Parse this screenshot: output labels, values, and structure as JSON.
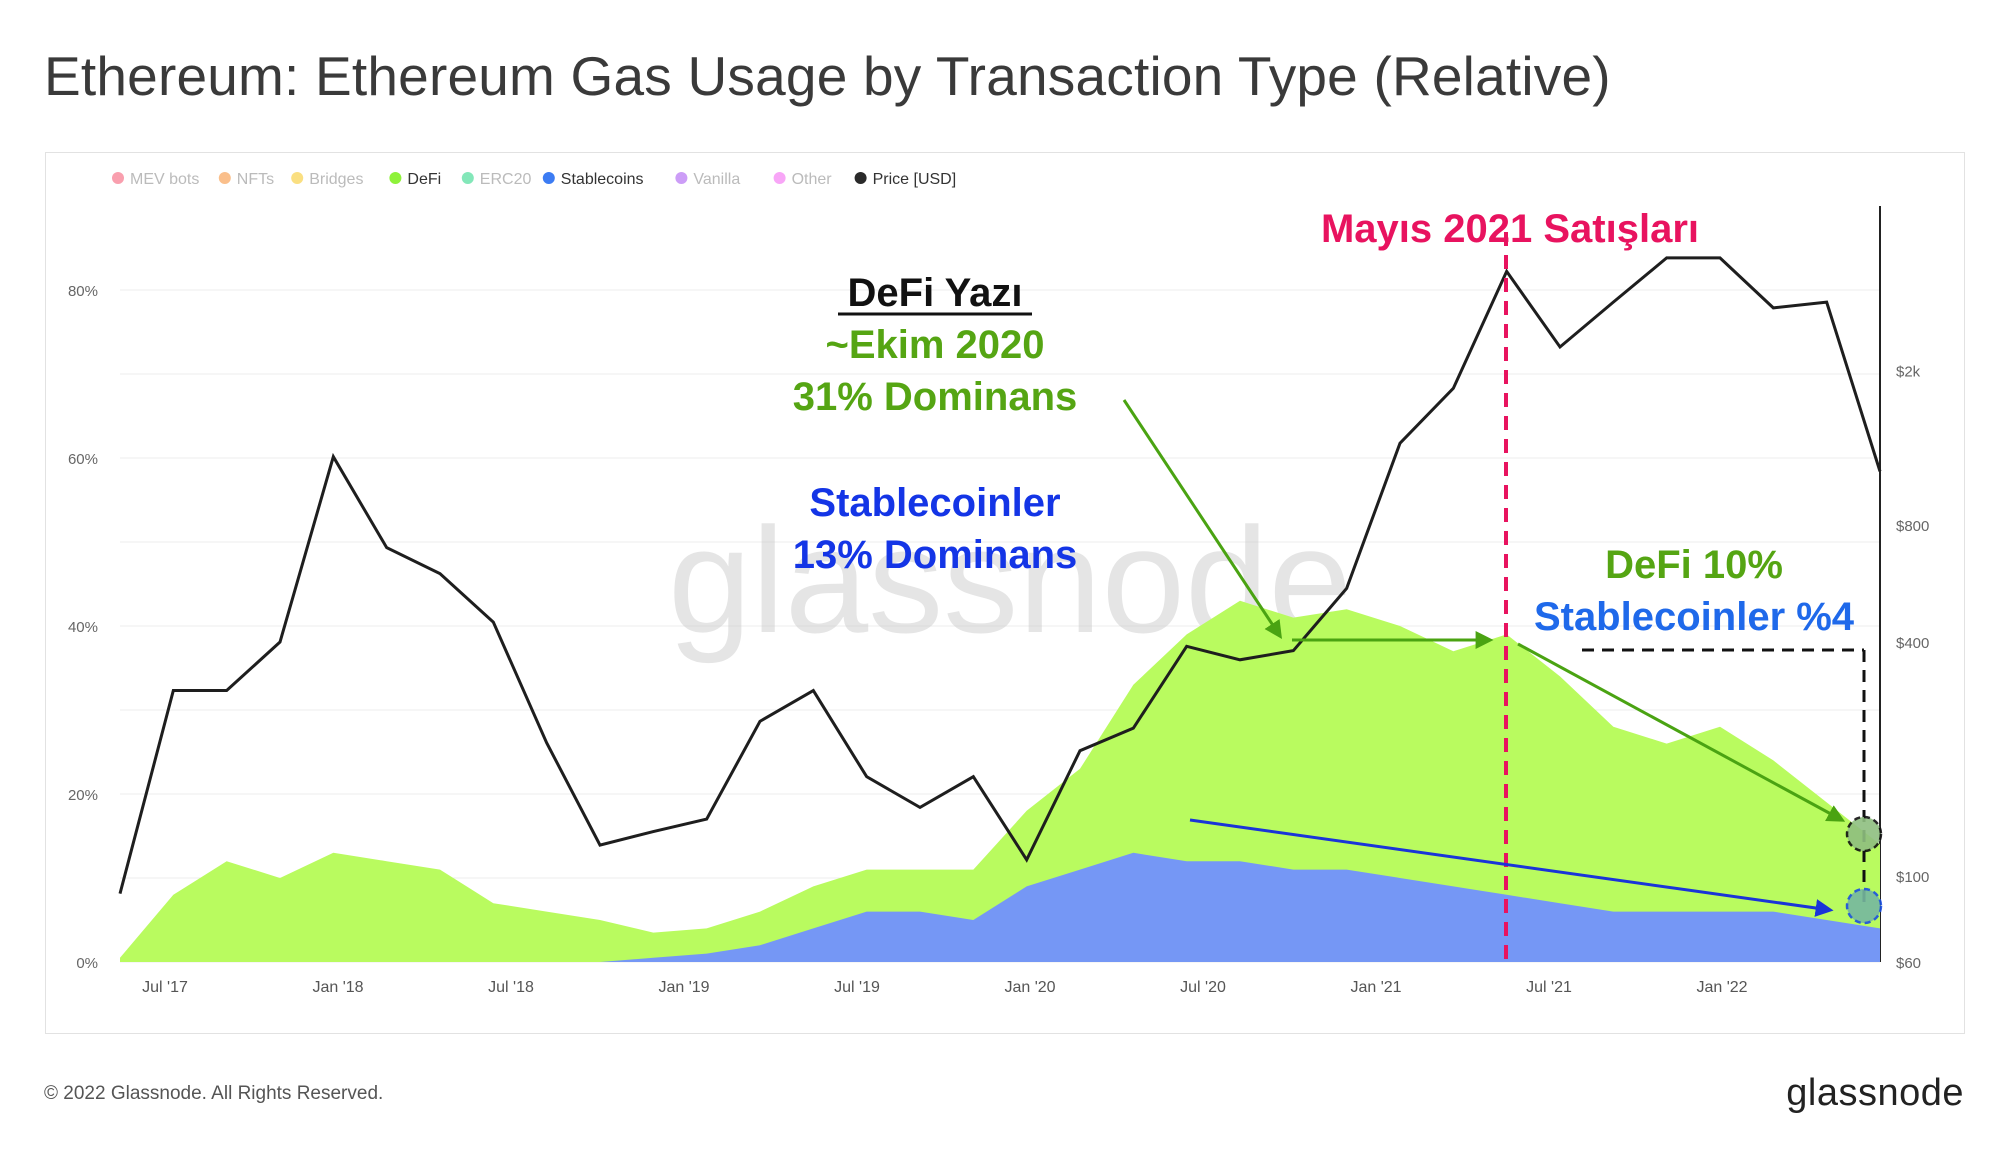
{
  "title": "Ethereum: Ethereum Gas Usage by Transaction Type (Relative)",
  "footer": {
    "copyright": "© 2022 Glassnode. All Rights Reserved.",
    "logo": "glassnode",
    "watermark": "glassnode"
  },
  "colors": {
    "defi": "#b9fb5f",
    "stablecoins": "#7597f5",
    "price": "#1e1e1e",
    "may_line": "#e8135f",
    "green_text": "#55a513",
    "blue_text": "#1435e6",
    "green_arrow": "#4aa312",
    "blue_arrow": "#1a34d8"
  },
  "legend": [
    {
      "label": "MEV bots",
      "color": "#f4506b",
      "active": false,
      "icon": "dot-icon"
    },
    {
      "label": "NFTs",
      "color": "#f58a2b",
      "active": false,
      "icon": "dot-icon"
    },
    {
      "label": "Bridges",
      "color": "#f6c41a",
      "active": false,
      "icon": "dot-icon"
    },
    {
      "label": "DeFi",
      "color": "#8ef23a",
      "active": true,
      "icon": "dot-icon"
    },
    {
      "label": "ERC20",
      "color": "#1ed37f",
      "active": false,
      "icon": "dot-icon"
    },
    {
      "label": "Stablecoins",
      "color": "#3c7cf3",
      "active": true,
      "icon": "dot-icon"
    },
    {
      "label": "Vanilla",
      "color": "#a34cf0",
      "active": false,
      "icon": "dot-icon"
    },
    {
      "label": "Other",
      "color": "#f25df0",
      "active": false,
      "icon": "dot-icon"
    },
    {
      "label": "Price [USD]",
      "color": "#2a2a2a",
      "active": true,
      "icon": "dot-icon"
    }
  ],
  "annotations": {
    "may_2021": "Mayıs 2021 Satışları",
    "defi_summer_title": "DeFi Yazı",
    "defi_summer_date": "~Ekim 2020",
    "defi_summer_dominance": "31% Dominans",
    "stable_title": "Stablecoinler",
    "stable_dominance": "13% Dominans",
    "defi_now": "DeFi 10%",
    "stable_now": "Stablecoinler %4"
  },
  "chart_data": {
    "type": "area",
    "title": "Ethereum: Ethereum Gas Usage by Transaction Type (Relative)",
    "x_ticks": [
      "Jul '17",
      "Jan '18",
      "Jul '18",
      "Jan '19",
      "Jul '19",
      "Jan '20",
      "Jul '20",
      "Jan '21",
      "Jul '21",
      "Jan '22"
    ],
    "y_left_ticks": [
      "0%",
      "20%",
      "40%",
      "60%",
      "80%"
    ],
    "y_left_range": [
      0,
      90
    ],
    "y_right_ticks": [
      "$60",
      "$100",
      "$400",
      "$800",
      "$2k"
    ],
    "y_right_scale": "log",
    "y_right_range": [
      60,
      5000
    ],
    "x": [
      "2017-05",
      "2017-07",
      "2017-09",
      "2017-11",
      "2018-01",
      "2018-03",
      "2018-05",
      "2018-07",
      "2018-09",
      "2018-11",
      "2019-01",
      "2019-03",
      "2019-05",
      "2019-07",
      "2019-09",
      "2019-11",
      "2020-01",
      "2020-03",
      "2020-05",
      "2020-07",
      "2020-08",
      "2020-09",
      "2020-10",
      "2020-11",
      "2021-01",
      "2021-03",
      "2021-05",
      "2021-06",
      "2021-08",
      "2021-10",
      "2021-12",
      "2022-02",
      "2022-04",
      "2022-06"
    ],
    "series": [
      {
        "name": "DeFi",
        "values": [
          0.5,
          8,
          12,
          10,
          13,
          12,
          11,
          7,
          6,
          5,
          3,
          3,
          4,
          5,
          5,
          5,
          6,
          9,
          12,
          20,
          27,
          31,
          30,
          31,
          30,
          28,
          31,
          27,
          22,
          20,
          22,
          18,
          14,
          10
        ]
      },
      {
        "name": "Stablecoins",
        "values": [
          0,
          0,
          0,
          0,
          0,
          0,
          0,
          0,
          0,
          0,
          0.5,
          1,
          2,
          4,
          6,
          6,
          5,
          9,
          11,
          13,
          12,
          12,
          11,
          11,
          10,
          9,
          8,
          7,
          6,
          6,
          6,
          6,
          5,
          4
        ]
      },
      {
        "name": "Price [USD]",
        "values": [
          90,
          300,
          300,
          400,
          1200,
          700,
          600,
          450,
          220,
          120,
          130,
          140,
          250,
          300,
          180,
          150,
          180,
          110,
          210,
          240,
          390,
          360,
          380,
          550,
          1300,
          1800,
          3600,
          2300,
          3000,
          3900,
          3900,
          2900,
          3000,
          1100
        ]
      }
    ]
  }
}
